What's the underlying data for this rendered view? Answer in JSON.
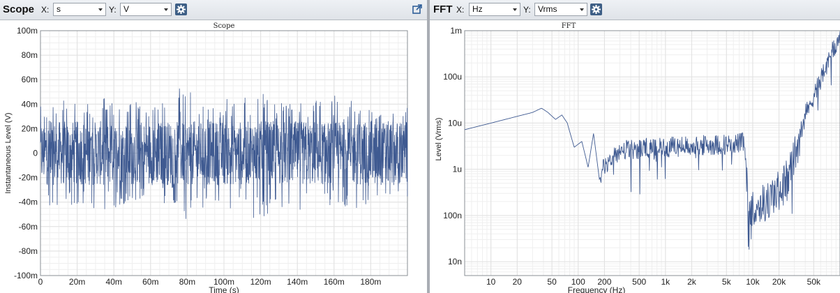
{
  "scope_panel": {
    "title": "Scope",
    "x_label": "X:",
    "x_value": "s",
    "y_label": "Y:",
    "y_value": "V"
  },
  "fft_panel": {
    "title": "FFT",
    "x_label": "X:",
    "x_value": "Hz",
    "y_label": "Y:",
    "y_value": "Vrms"
  },
  "icons": {
    "settings": "gear-icon",
    "popout": "popout-icon"
  },
  "colors": {
    "trace": "#3f5a91",
    "grid": "#e1e1e1",
    "grid_minor": "#efefef",
    "toolbar": "#e5e8ec",
    "settings_button": "#3e5f86"
  },
  "chart_data": [
    {
      "type": "line",
      "title": "Scope",
      "xlabel": "Time (s)",
      "ylabel": "Instantaneous Level (V)",
      "xlim": [
        0,
        0.2
      ],
      "ylim": [
        -0.1,
        0.1
      ],
      "x_ticks": [
        0,
        0.02,
        0.04,
        0.06,
        0.08,
        0.1,
        0.12,
        0.14,
        0.16,
        0.18
      ],
      "x_tick_labels": [
        "0",
        "20m",
        "40m",
        "60m",
        "80m",
        "100m",
        "120m",
        "140m",
        "160m",
        "180m"
      ],
      "y_ticks": [
        0.1,
        0.08,
        0.06,
        0.04,
        0.02,
        0,
        -0.02,
        -0.04,
        -0.06,
        -0.08,
        -0.1
      ],
      "y_tick_labels": [
        "100m",
        "80m",
        "60m",
        "40m",
        "20m",
        "0",
        "-20m",
        "-40m",
        "-60m",
        "-80m",
        "-100m"
      ],
      "grid": true,
      "series": [
        {
          "description_of_shape": "noise signal",
          "x_start": 0,
          "x_end": 0.2,
          "envelope_max": [
            0.04,
            0.048,
            0.045,
            0.047,
            0.043,
            0.046,
            0.053,
            0.044,
            0.046,
            0.052,
            0.047,
            0.045,
            0.048,
            0.046,
            0.04,
            0.038
          ],
          "envelope_min": [
            -0.045,
            -0.047,
            -0.046,
            -0.048,
            -0.044,
            -0.046,
            -0.056,
            -0.045,
            -0.048,
            -0.056,
            -0.046,
            -0.047,
            -0.048,
            -0.046,
            -0.044,
            -0.042
          ],
          "typical_amplitude": 0.025
        }
      ]
    },
    {
      "type": "line",
      "title": "FFT",
      "xlabel": "Frequency (Hz)",
      "ylabel": "Level (Vrms)",
      "x_scale": "log",
      "y_scale": "log",
      "xlim": [
        5,
        100000
      ],
      "ylim": [
        5e-09,
        0.001
      ],
      "x_ticks": [
        10,
        20,
        50,
        100,
        200,
        500,
        1000,
        2000,
        5000,
        10000,
        20000,
        50000
      ],
      "x_tick_labels": [
        "10",
        "20",
        "50",
        "100",
        "200",
        "500",
        "1k",
        "2k",
        "5k",
        "10k",
        "20k",
        "50k"
      ],
      "y_ticks": [
        0.001,
        0.0001,
        1e-05,
        1e-06,
        1e-07,
        1e-08
      ],
      "y_tick_labels": [
        "1m",
        "100u",
        "10u",
        "1u",
        "100n",
        "10n"
      ],
      "grid": true,
      "series": [
        {
          "points_hz_vrms": [
            [
              5,
              7.2e-06
            ],
            [
              10,
              1e-05
            ],
            [
              20,
              1.4e-05
            ],
            [
              30,
              1.7e-05
            ],
            [
              38,
              2.1e-05
            ],
            [
              45,
              1.7e-05
            ],
            [
              55,
              1.2e-05
            ],
            [
              65,
              1.5e-05
            ],
            [
              75,
              1e-05
            ],
            [
              90,
              3e-06
            ],
            [
              110,
              4e-06
            ],
            [
              130,
              1.1e-06
            ],
            [
              150,
              6e-06
            ],
            [
              175,
              6e-07
            ],
            [
              200,
              1.2e-06
            ],
            [
              300,
              2.5e-06
            ],
            [
              500,
              2.8e-06
            ],
            [
              1000,
              3e-06
            ],
            [
              2000,
              3.2e-06
            ],
            [
              5000,
              3.5e-06
            ],
            [
              8000,
              3.8e-06
            ],
            [
              9000,
              1e-07
            ],
            [
              10000,
              1.5e-07
            ],
            [
              15000,
              2e-07
            ],
            [
              20000,
              3.5e-07
            ],
            [
              25000,
              6e-07
            ],
            [
              30000,
              2e-06
            ],
            [
              40000,
              1.5e-05
            ],
            [
              60000,
              9e-05
            ],
            [
              100000,
              0.0008
            ]
          ]
        }
      ]
    }
  ]
}
